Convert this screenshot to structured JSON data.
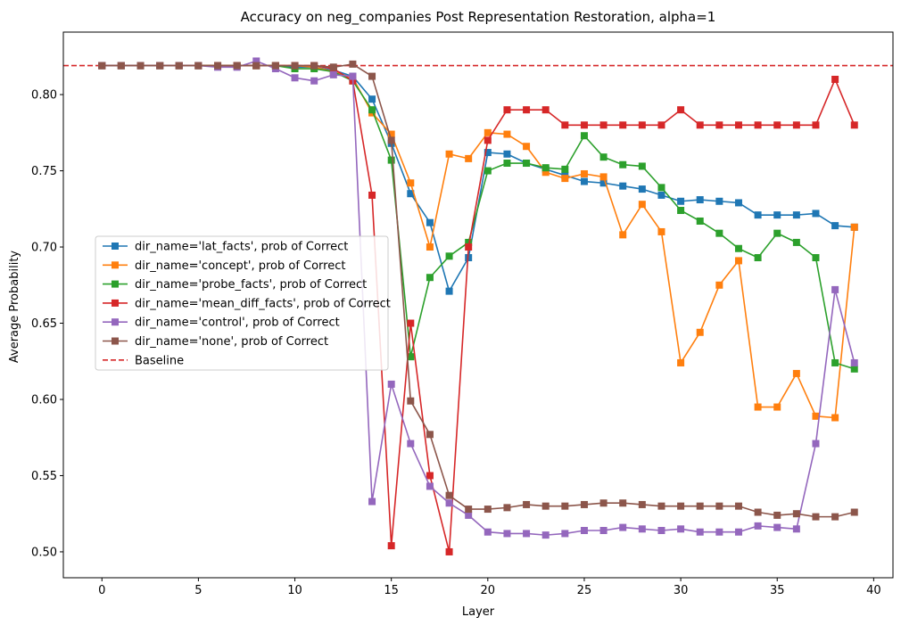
{
  "chart_data": {
    "type": "line",
    "title": "Accuracy on neg_companies Post Representation Restoration, alpha=1",
    "xlabel": "Layer",
    "ylabel": "Average Probability",
    "xlim": [
      -2,
      41
    ],
    "ylim": [
      0.483,
      0.841
    ],
    "xticks": [
      0,
      5,
      10,
      15,
      20,
      25,
      30,
      35,
      40
    ],
    "yticks": [
      0.5,
      0.55,
      0.6,
      0.65,
      0.7,
      0.75,
      0.8
    ],
    "ytick_labels": [
      "0.50",
      "0.55",
      "0.60",
      "0.65",
      "0.70",
      "0.75",
      "0.80"
    ],
    "grid": false,
    "legend_position": "center-left",
    "baseline": {
      "name": "Baseline",
      "value": 0.819,
      "color": "#d62728",
      "style": "dashed"
    },
    "x": [
      0,
      1,
      2,
      3,
      4,
      5,
      6,
      7,
      8,
      9,
      10,
      11,
      12,
      13,
      14,
      15,
      16,
      17,
      18,
      19,
      20,
      21,
      22,
      23,
      24,
      25,
      26,
      27,
      28,
      29,
      30,
      31,
      32,
      33,
      34,
      35,
      36,
      37,
      38,
      39
    ],
    "series": [
      {
        "name": "dir_name='lat_facts', prob of Correct",
        "color": "#1f77b4",
        "values": [
          0.819,
          0.819,
          0.819,
          0.819,
          0.819,
          0.819,
          0.819,
          0.819,
          0.819,
          0.819,
          0.818,
          0.818,
          0.816,
          0.812,
          0.797,
          0.768,
          0.735,
          0.716,
          0.671,
          0.693,
          0.762,
          0.761,
          0.755,
          0.751,
          0.747,
          0.743,
          0.742,
          0.74,
          0.738,
          0.734,
          0.73,
          0.731,
          0.73,
          0.729,
          0.721,
          0.721,
          0.721,
          0.722,
          0.714,
          0.713
        ]
      },
      {
        "name": "dir_name='concept', prob of Correct",
        "color": "#ff7f0e",
        "values": [
          0.819,
          0.819,
          0.819,
          0.819,
          0.819,
          0.819,
          0.819,
          0.819,
          0.819,
          0.819,
          0.819,
          0.818,
          0.815,
          0.811,
          0.788,
          0.774,
          0.742,
          0.7,
          0.761,
          0.758,
          0.775,
          0.774,
          0.766,
          0.749,
          0.745,
          0.748,
          0.746,
          0.708,
          0.728,
          0.71,
          0.624,
          0.644,
          0.675,
          0.691,
          0.595,
          0.595,
          0.617,
          0.589,
          0.588,
          0.713
        ]
      },
      {
        "name": "dir_name='probe_facts', prob of Correct",
        "color": "#2ca02c",
        "values": [
          0.819,
          0.819,
          0.819,
          0.819,
          0.819,
          0.819,
          0.819,
          0.819,
          0.819,
          0.819,
          0.817,
          0.817,
          0.815,
          0.809,
          0.79,
          0.757,
          0.628,
          0.68,
          0.694,
          0.703,
          0.75,
          0.755,
          0.755,
          0.752,
          0.751,
          0.773,
          0.759,
          0.754,
          0.753,
          0.739,
          0.724,
          0.717,
          0.709,
          0.699,
          0.693,
          0.709,
          0.703,
          0.693,
          0.624,
          0.62
        ]
      },
      {
        "name": "dir_name='mean_diff_facts', prob of Correct",
        "color": "#d62728",
        "values": [
          0.819,
          0.819,
          0.819,
          0.819,
          0.819,
          0.819,
          0.819,
          0.819,
          0.819,
          0.819,
          0.819,
          0.819,
          0.817,
          0.809,
          0.734,
          0.504,
          0.65,
          0.55,
          0.5,
          0.7,
          0.77,
          0.79,
          0.79,
          0.79,
          0.78,
          0.78,
          0.78,
          0.78,
          0.78,
          0.78,
          0.79,
          0.78,
          0.78,
          0.78,
          0.78,
          0.78,
          0.78,
          0.78,
          0.81,
          0.78
        ]
      },
      {
        "name": "dir_name='control', prob of Correct",
        "color": "#9467bd",
        "values": [
          0.819,
          0.819,
          0.819,
          0.819,
          0.819,
          0.819,
          0.818,
          0.818,
          0.822,
          0.817,
          0.811,
          0.809,
          0.813,
          0.812,
          0.533,
          0.61,
          0.571,
          0.543,
          0.532,
          0.524,
          0.513,
          0.512,
          0.512,
          0.511,
          0.512,
          0.514,
          0.514,
          0.516,
          0.515,
          0.514,
          0.515,
          0.513,
          0.513,
          0.513,
          0.517,
          0.516,
          0.515,
          0.571,
          0.672,
          0.624
        ]
      },
      {
        "name": "dir_name='none', prob of Correct",
        "color": "#8c564b",
        "values": [
          0.819,
          0.819,
          0.819,
          0.819,
          0.819,
          0.819,
          0.819,
          0.819,
          0.819,
          0.819,
          0.819,
          0.819,
          0.818,
          0.82,
          0.812,
          0.77,
          0.599,
          0.577,
          0.537,
          0.528,
          0.528,
          0.529,
          0.531,
          0.53,
          0.53,
          0.531,
          0.532,
          0.532,
          0.531,
          0.53,
          0.53,
          0.53,
          0.53,
          0.53,
          0.526,
          0.524,
          0.525,
          0.523,
          0.523,
          0.526
        ]
      }
    ]
  }
}
